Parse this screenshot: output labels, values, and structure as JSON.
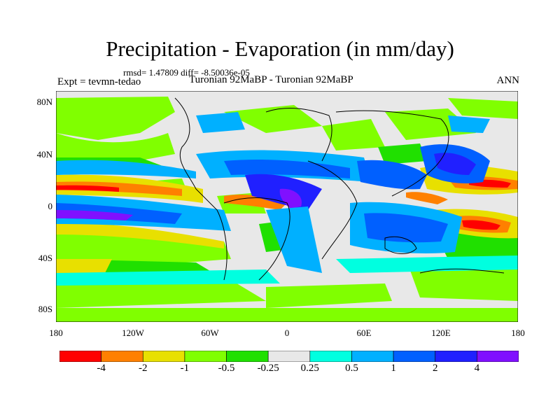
{
  "title": "Precipitation - Evaporation (in mm/day)",
  "stats": "rmsd= 1.47809 diff= -8.50036e-05",
  "expt_label": "Expt = tevmn-tedao",
  "experiment_names": "Turonian  92MaBP - Turonian  92MaBP",
  "season": "ANN",
  "lat_ticks": [
    "80N",
    "40N",
    "0",
    "40S",
    "80S"
  ],
  "lon_ticks": [
    "180",
    "120W",
    "60W",
    "0",
    "60E",
    "120E",
    "180"
  ],
  "colorbar": {
    "colors": [
      "#ff0000",
      "#ff8000",
      "#e8e000",
      "#80ff00",
      "#20e000",
      "#e8e8e8",
      "#00ffe0",
      "#00b0ff",
      "#0060ff",
      "#2020ff",
      "#8010ff"
    ],
    "labels": [
      "-4",
      "-2",
      "-1",
      "-0.5",
      "-0.25",
      "0.25",
      "0.5",
      "1",
      "2",
      "4"
    ]
  }
}
